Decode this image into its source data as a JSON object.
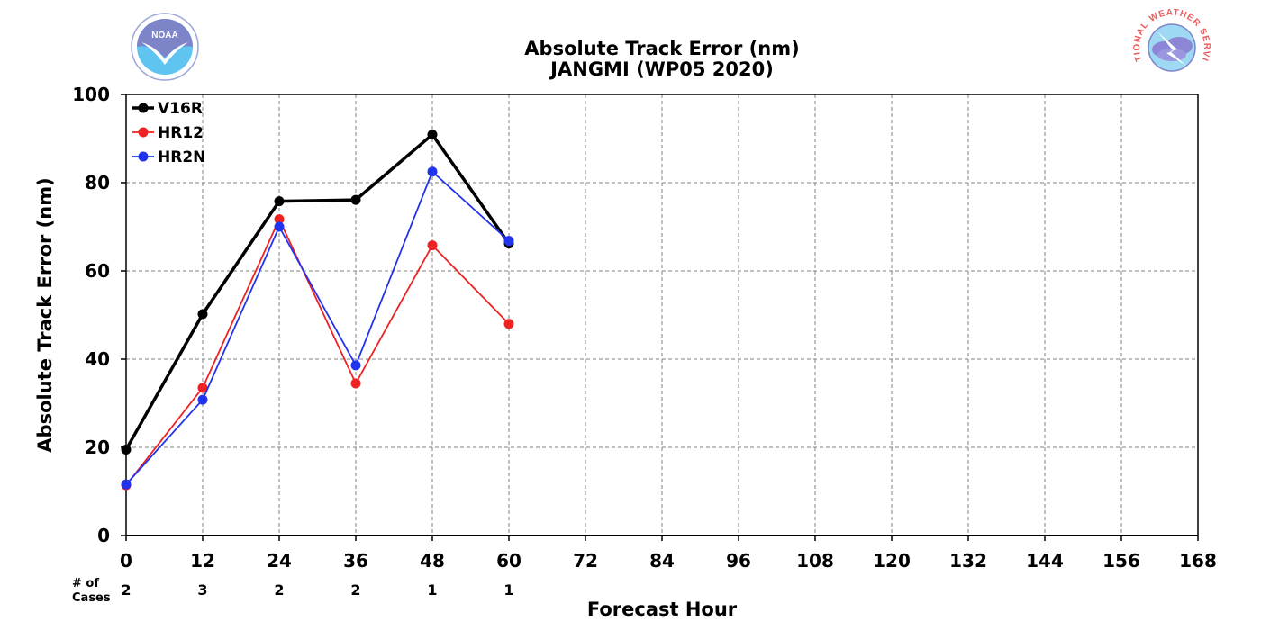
{
  "chart_data": {
    "type": "line",
    "title": "Absolute Track Error (nm)",
    "subtitle": "JANGMI (WP05 2020)",
    "xlabel": "Forecast Hour",
    "ylabel": "Absolute Track Error (nm)",
    "xlim": [
      0,
      168
    ],
    "ylim": [
      0,
      100
    ],
    "x_ticks": [
      0,
      12,
      24,
      36,
      48,
      60,
      72,
      84,
      96,
      108,
      120,
      132,
      144,
      156,
      168
    ],
    "y_ticks": [
      0,
      20,
      40,
      60,
      80,
      100
    ],
    "grid": true,
    "legend_position": "top-left",
    "cases_label": [
      "# of",
      "Cases"
    ],
    "cases": [
      {
        "x": 0,
        "n": "2"
      },
      {
        "x": 12,
        "n": "3"
      },
      {
        "x": 24,
        "n": "2"
      },
      {
        "x": 36,
        "n": "2"
      },
      {
        "x": 48,
        "n": "1"
      },
      {
        "x": 60,
        "n": "1"
      }
    ],
    "series": [
      {
        "name": "V16R",
        "color": "#000000",
        "thick": true,
        "x": [
          0,
          12,
          24,
          36,
          48,
          60
        ],
        "values": [
          19.5,
          50.2,
          75.8,
          76.1,
          90.9,
          66.2
        ]
      },
      {
        "name": "HR12",
        "color": "#ee2222",
        "thick": false,
        "x": [
          0,
          12,
          24,
          36,
          48,
          60
        ],
        "values": [
          11.4,
          33.5,
          71.7,
          34.5,
          65.8,
          48.0
        ]
      },
      {
        "name": "HR2N",
        "color": "#2233ee",
        "thick": false,
        "x": [
          0,
          12,
          24,
          36,
          48,
          60
        ],
        "values": [
          11.6,
          30.8,
          70.0,
          38.6,
          82.5,
          66.8
        ]
      }
    ]
  },
  "logos": {
    "noaa": {
      "text": "NOAA",
      "icon": "noaa-logo"
    },
    "nws": {
      "text": "NATIONAL WEATHER SERVICE",
      "icon": "nws-logo"
    }
  }
}
